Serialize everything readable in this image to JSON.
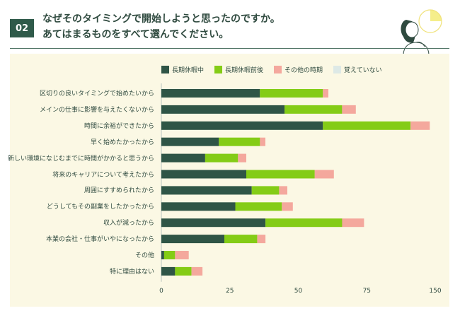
{
  "header": {
    "badge": "02",
    "title_line1": "なぜそのタイミングで開始しようと思ったのですか。",
    "title_line2": "あてはまるものをすべて選んでください。"
  },
  "colors": {
    "series": [
      "#2f5546",
      "#84cc16",
      "#f4a89d",
      "#dde9e6"
    ],
    "panel_bg": "#fbf8e4",
    "accent": "#2f5a4a"
  },
  "chart_data": {
    "type": "bar",
    "orientation": "horizontal",
    "stacked": true,
    "categories": [
      "区切りの良いタイミングで始めたいから",
      "メインの仕事に影響を与えたくないから",
      "時間に余裕ができたから",
      "早く始めたかったから",
      "新しい環境になじむまでに時間がかかると思うから",
      "将来のキャリアについて考えたから",
      "周囲にすすめられたから",
      "どうしてもその副業をしたかったから",
      "収入が減ったから",
      "本業の会社・仕事がいやになったから",
      "その他",
      "特に理由はない"
    ],
    "series": [
      {
        "name": "長期休暇中",
        "values": [
          36,
          45,
          59,
          21,
          16,
          31,
          33,
          27,
          38,
          23,
          1,
          5
        ]
      },
      {
        "name": "長期休暇前後",
        "values": [
          23,
          21,
          32,
          15,
          12,
          25,
          10,
          17,
          28,
          12,
          4,
          6
        ]
      },
      {
        "name": "その他の時期",
        "values": [
          2,
          5,
          7,
          2,
          3,
          7,
          3,
          4,
          8,
          3,
          5,
          4
        ]
      },
      {
        "name": "覚えていない",
        "values": [
          0,
          0,
          0,
          0,
          0,
          0,
          0,
          0,
          0,
          0,
          0,
          0
        ]
      }
    ],
    "xlim": [
      0,
      150
    ],
    "xticks": [
      "0",
      "25",
      "50",
      "75",
      "150"
    ],
    "legend_position": "top",
    "grid": false
  }
}
